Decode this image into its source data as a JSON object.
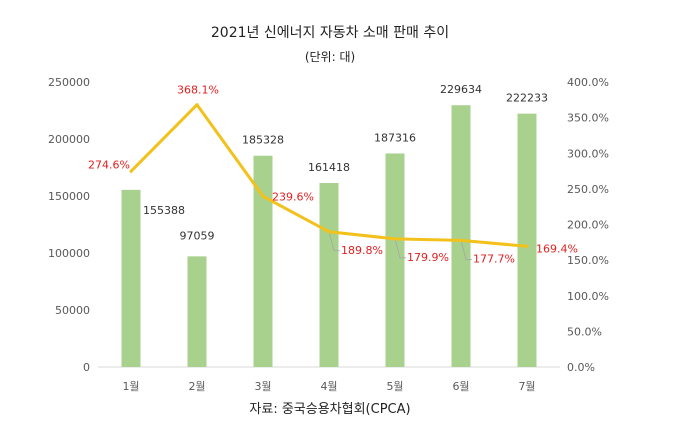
{
  "chart_data": {
    "type": "bar",
    "title": "2021년 신에너지 자동차 소매 판매 추이",
    "subtitle": "(단위: 대)",
    "source": "자료: 중국승용차협회(CPCA)",
    "categories": [
      "1월",
      "2월",
      "3월",
      "4월",
      "5월",
      "6월",
      "7월"
    ],
    "series": [
      {
        "type": "bar",
        "values": [
          155388,
          97059,
          185328,
          161418,
          187316,
          229634,
          222233
        ],
        "labels": [
          "155388",
          "97059",
          "185328",
          "161418",
          "187316",
          "229634",
          "222233"
        ],
        "color": "#a9d18e",
        "axis": "left"
      },
      {
        "type": "line",
        "values": [
          274.6,
          368.1,
          239.6,
          189.8,
          179.9,
          177.7,
          169.4
        ],
        "labels": [
          "274.6%",
          "368.1%",
          "239.6%",
          "189.8%",
          "179.9%",
          "177.7%",
          "169.4%"
        ],
        "color": "#f2c11b",
        "axis": "right"
      }
    ],
    "left_axis": {
      "ylim": [
        0,
        250000
      ],
      "ticks": [
        0,
        50000,
        100000,
        150000,
        200000,
        250000
      ],
      "tick_labels": [
        "0",
        "50000",
        "100000",
        "150000",
        "200000",
        "250000"
      ]
    },
    "right_axis": {
      "ylim": [
        0,
        400
      ],
      "ticks": [
        0,
        50,
        100,
        150,
        200,
        250,
        300,
        350,
        400
      ],
      "tick_labels": [
        "0.0%",
        "50.0%",
        "100.0%",
        "150.0%",
        "200.0%",
        "250.0%",
        "300.0%",
        "350.0%",
        "400.0%"
      ]
    },
    "grid": false,
    "legend": "none"
  }
}
